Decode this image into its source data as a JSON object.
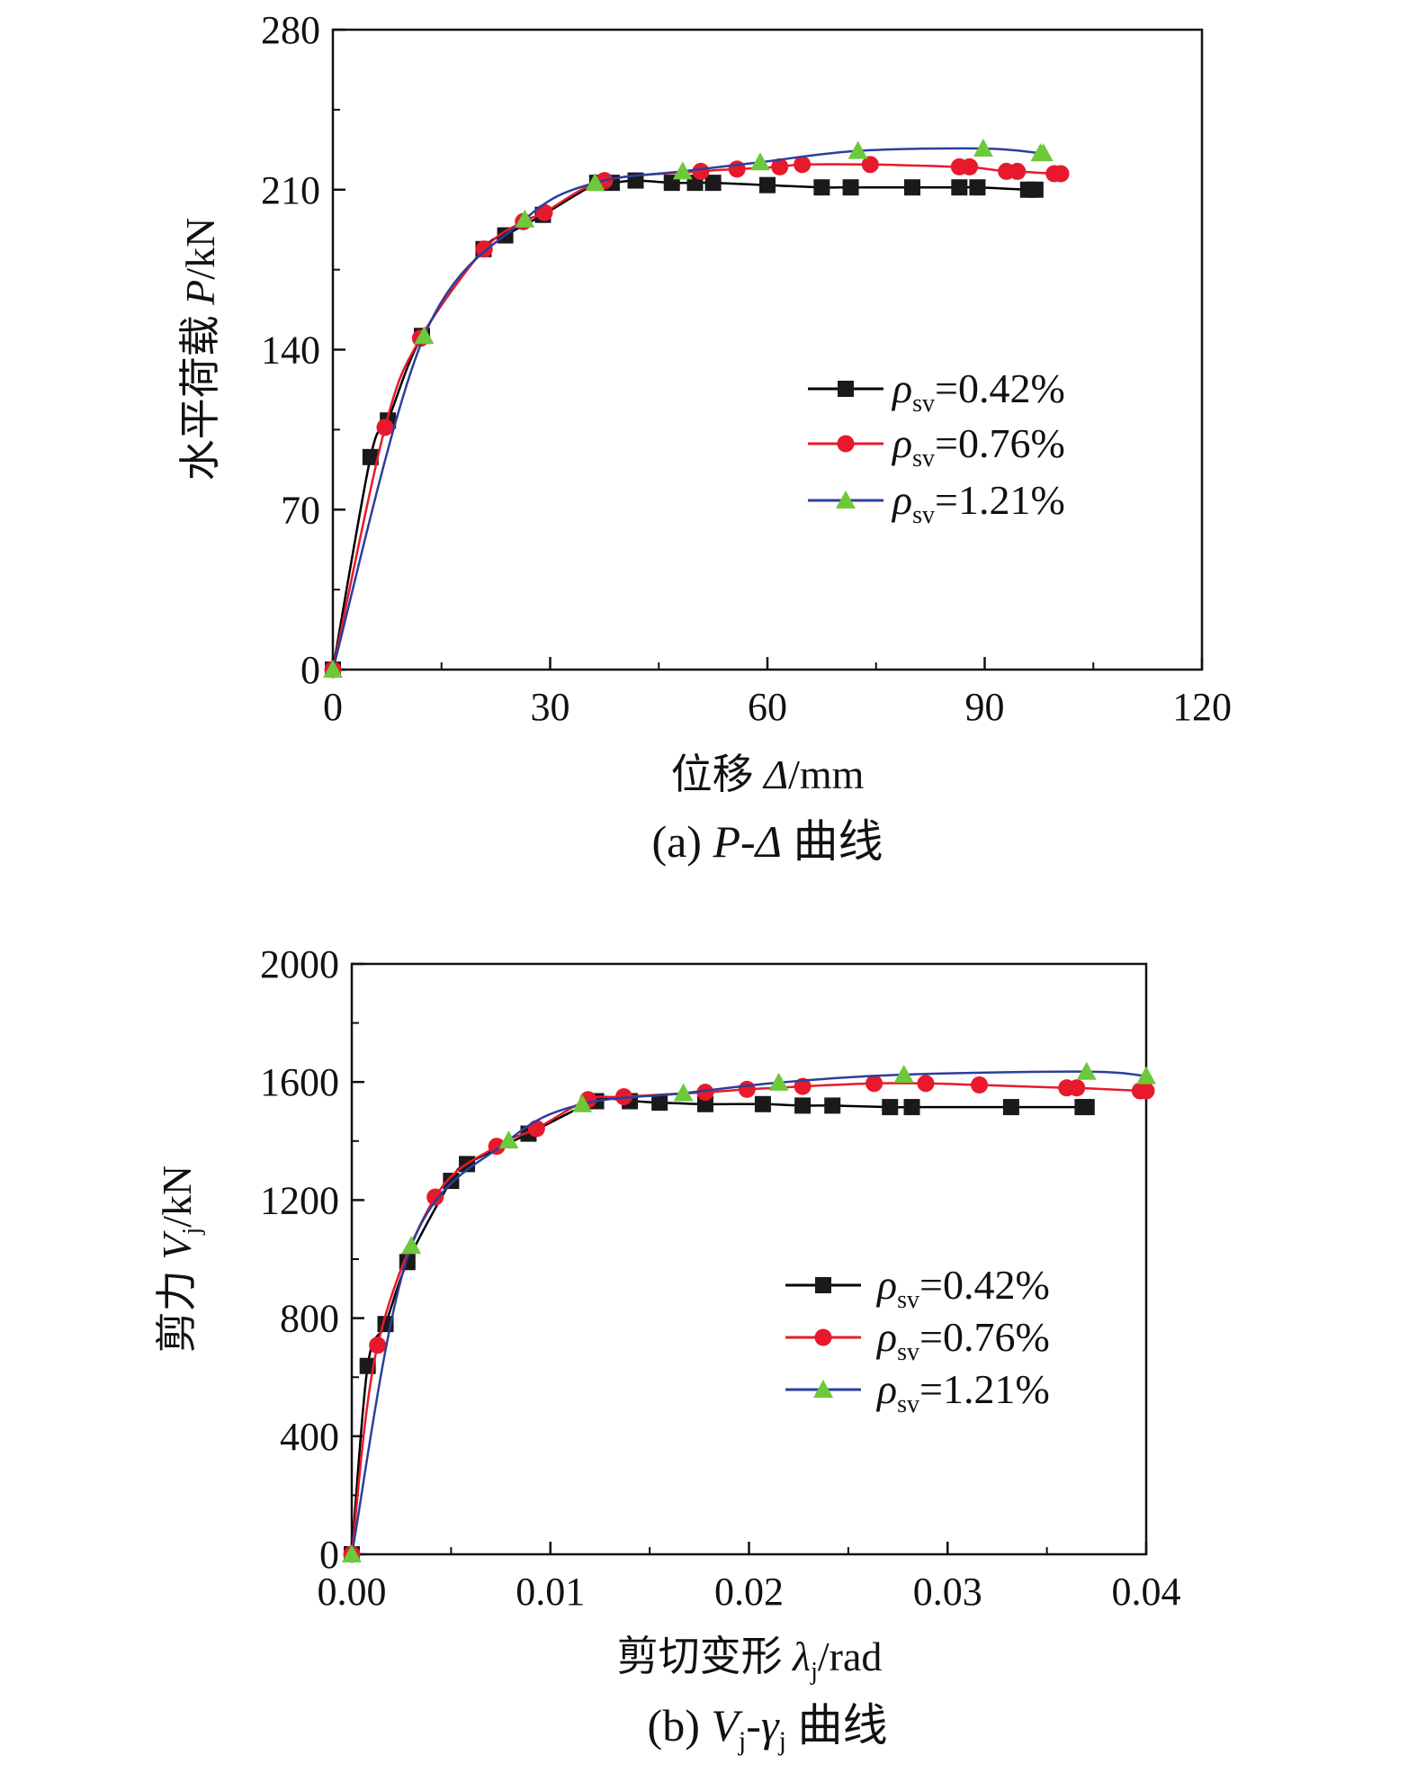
{
  "chart_data": [
    {
      "type": "line",
      "caption": "(a) P-Δ 曲线",
      "caption_parts": {
        "prefix": "(a) ",
        "math": "P-Δ",
        "suffix": " 曲线"
      },
      "xlabel": "位移 Δ/mm",
      "xlabel_parts": {
        "prefix": "位移 ",
        "math": "Δ",
        "suffix": "/mm"
      },
      "ylabel": "水平荷载 P/kN",
      "ylabel_parts": {
        "prefix": "水平荷载 ",
        "math": "P",
        "suffix": "/kN"
      },
      "xlim": [
        0,
        120
      ],
      "ylim": [
        0,
        280
      ],
      "xticks": [
        0,
        30,
        60,
        90,
        120
      ],
      "xtick_labels": [
        "0",
        "30",
        "60",
        "90",
        "120"
      ],
      "yticks": [
        0,
        70,
        140,
        210,
        280
      ],
      "ytick_labels": [
        "0",
        "70",
        "140",
        "210",
        "280"
      ],
      "grid": false,
      "legend_position": "right-middle",
      "series": [
        {
          "name": "ρsv=0.42%",
          "name_parts": {
            "symbol": "ρ",
            "sub": "sv",
            "rest": "=0.42%"
          },
          "color": "#000000",
          "marker": "square",
          "x": [
            0,
            5.2,
            7.6,
            12.3,
            20.8,
            23.8,
            29.0,
            36.5,
            38.5,
            41.8,
            46.8,
            50.0,
            52.5,
            60.0,
            67.5,
            71.5,
            80.0,
            86.5,
            89.0,
            96.0,
            97.0
          ],
          "y": [
            0,
            93,
            109,
            146,
            184,
            190,
            199,
            213,
            213,
            214,
            213,
            213,
            213,
            212,
            211,
            211,
            211,
            211,
            211,
            210,
            210
          ]
        },
        {
          "name": "ρsv=0.76%",
          "name_parts": {
            "symbol": "ρ",
            "sub": "sv",
            "rest": "=0.76%"
          },
          "color": "#e8192c",
          "marker": "circle",
          "x": [
            0,
            7.2,
            12.1,
            20.9,
            26.3,
            29.2,
            37.5,
            50.8,
            55.8,
            61.7,
            64.8,
            74.2,
            86.5,
            87.9,
            93.0,
            94.5,
            99.6,
            100.5
          ],
          "y": [
            0,
            106,
            145,
            184,
            196,
            200,
            214,
            218,
            219,
            220,
            221,
            221,
            220,
            220,
            218,
            218,
            217,
            217
          ]
        },
        {
          "name": "ρsv=1.21%",
          "name_parts": {
            "symbol": "ρ",
            "sub": "sv",
            "rest": "=1.21%"
          },
          "color": "#2b3f9e",
          "markerColor": "#6cc93a",
          "marker": "triangle",
          "x": [
            0,
            12.6,
            26.5,
            36.2,
            48.3,
            59.0,
            72.5,
            89.8,
            97.7,
            98.1
          ],
          "y": [
            0,
            146,
            197,
            213,
            218,
            222,
            227,
            228,
            226,
            226
          ]
        }
      ]
    },
    {
      "type": "line",
      "caption": "(b) Vj-γj 曲线",
      "caption_parts": {
        "prefix": "(b) ",
        "v": "V",
        "vsub": "j",
        "dash": "-",
        "g": "γ",
        "gsub": "j",
        "suffix": " 曲线"
      },
      "xlabel": "剪切变形 λj/rad",
      "xlabel_parts": {
        "prefix": "剪切变形 ",
        "math": "λ",
        "sub": "j",
        "suffix": "/rad"
      },
      "ylabel": "剪力 Vj/kN",
      "ylabel_parts": {
        "prefix": "剪力 ",
        "math": "V",
        "sub": "j",
        "suffix": "/kN"
      },
      "xlim": [
        0,
        0.04
      ],
      "ylim": [
        0,
        2000
      ],
      "xticks": [
        0,
        0.01,
        0.02,
        0.03,
        0.04
      ],
      "xtick_labels": [
        "0.00",
        "0.01",
        "0.02",
        "0.03",
        "0.04"
      ],
      "yticks": [
        0,
        400,
        800,
        1200,
        1600,
        2000
      ],
      "ytick_labels": [
        "0",
        "400",
        "800",
        "1200",
        "1600",
        "2000"
      ],
      "grid": false,
      "legend_position": "right-middle",
      "series": [
        {
          "name": "ρsv=0.42%",
          "name_parts": {
            "symbol": "ρ",
            "sub": "sv",
            "rest": "=0.42%"
          },
          "color": "#000000",
          "marker": "square",
          "x": [
            0,
            0.0008,
            0.0017,
            0.0028,
            0.005,
            0.0058,
            0.0089,
            0.0123,
            0.014,
            0.0155,
            0.0178,
            0.0207,
            0.0227,
            0.0242,
            0.0271,
            0.0282,
            0.0332,
            0.0368,
            0.037
          ],
          "y": [
            0,
            638,
            780,
            990,
            1265,
            1322,
            1425,
            1535,
            1535,
            1530,
            1525,
            1525,
            1520,
            1520,
            1515,
            1515,
            1515,
            1515,
            1515
          ]
        },
        {
          "name": "ρsv=0.76%",
          "name_parts": {
            "symbol": "ρ",
            "sub": "sv",
            "rest": "=0.76%"
          },
          "color": "#e8192c",
          "marker": "circle",
          "x": [
            0,
            0.0013,
            0.0042,
            0.0073,
            0.0093,
            0.0119,
            0.0137,
            0.0178,
            0.0199,
            0.0227,
            0.0263,
            0.0289,
            0.0316,
            0.036,
            0.0365,
            0.0397,
            0.04
          ],
          "y": [
            0,
            708,
            1210,
            1382,
            1442,
            1540,
            1550,
            1565,
            1575,
            1585,
            1595,
            1595,
            1590,
            1580,
            1580,
            1570,
            1570
          ]
        },
        {
          "name": "ρsv=1.21%",
          "name_parts": {
            "symbol": "ρ",
            "sub": "sv",
            "rest": "=1.21%"
          },
          "color": "#2b3f9e",
          "markerColor": "#6cc93a",
          "marker": "triangle",
          "x": [
            0,
            0.003,
            0.0079,
            0.0116,
            0.0167,
            0.0215,
            0.0278,
            0.037,
            0.04
          ],
          "y": [
            0,
            1045,
            1402,
            1525,
            1562,
            1598,
            1625,
            1635,
            1620
          ]
        }
      ]
    }
  ]
}
